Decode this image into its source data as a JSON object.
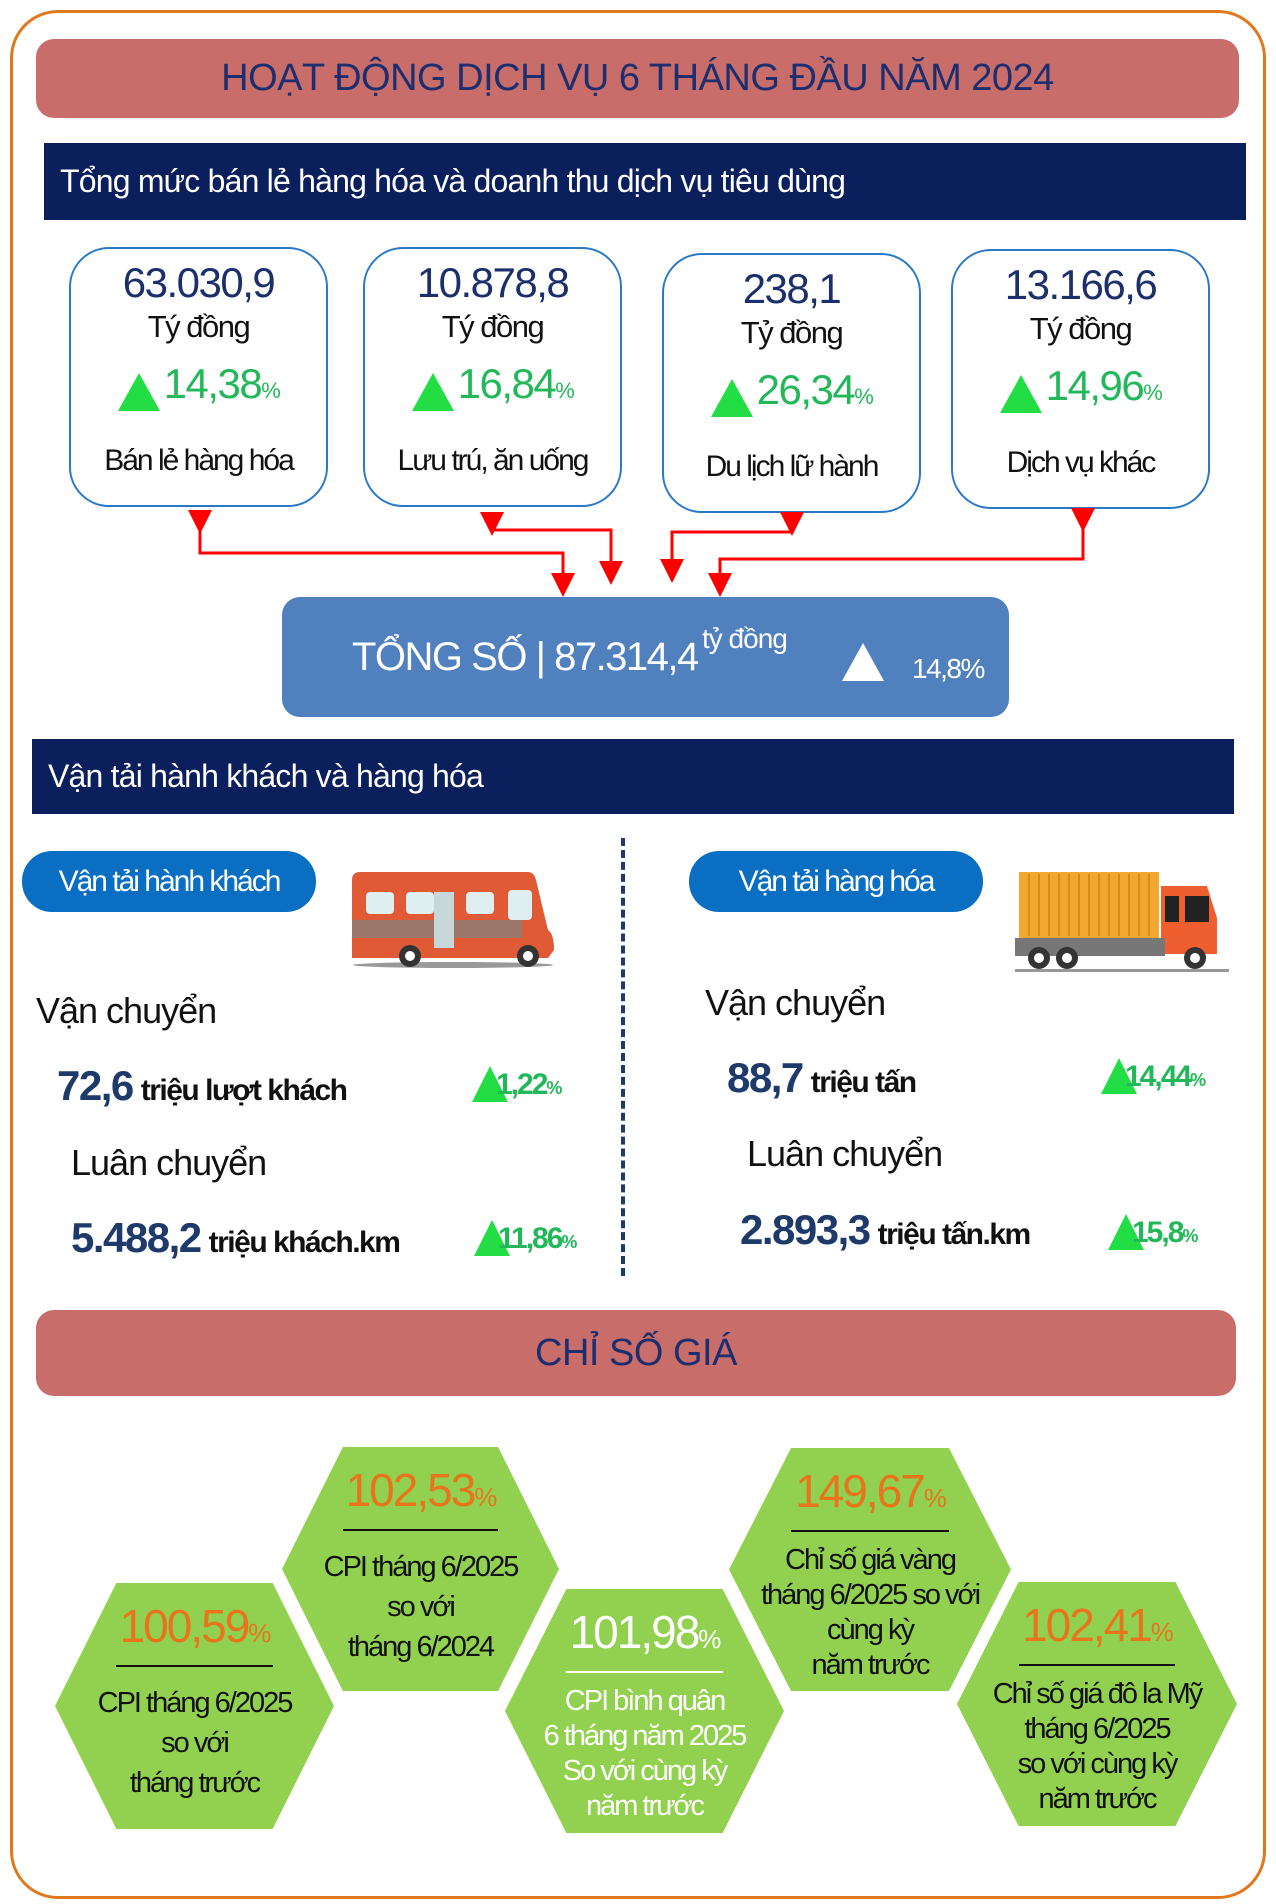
{
  "title": "HOẠT ĐỘNG DỊCH VỤ 6 THÁNG ĐẦU NĂM 2024",
  "retail_section": {
    "heading": "Tổng mức bán lẻ hàng hóa và doanh thu dịch vụ tiêu dùng",
    "cards": [
      {
        "value": "63.030,9",
        "unit": "Tý đồng",
        "change": "14,38",
        "pct": "%",
        "label": "Bán lẻ hàng hóa"
      },
      {
        "value": "10.878,8",
        "unit": "Tý đồng",
        "change": "16,84",
        "pct": "%",
        "label": "Lưu trú, ăn uống"
      },
      {
        "value": "238,1",
        "unit": "Tỷ đồng",
        "change": "26,34",
        "pct": "%",
        "label": "Du lịch lữ hành"
      },
      {
        "value": "13.166,6",
        "unit": "Tý đồng",
        "change": "14,96",
        "pct": "%",
        "label": "Dịch vụ khác"
      }
    ],
    "total": {
      "label": "TỔNG SỐ | 87.314,4",
      "unit": "tỷ đồng",
      "change": "14,8%"
    }
  },
  "transport_section": {
    "heading": "Vận tải hành khách và hàng hóa",
    "passenger": {
      "pill": "Vận tải hành khách",
      "carry_label": "Vận chuyển",
      "carry_value": "72,6",
      "carry_unit": "triệu lượt khách",
      "carry_change": "1,22",
      "pct": "%",
      "rotation_label": "Luân chuyển",
      "rotation_value": "5.488,2",
      "rotation_unit": "triệu khách.km",
      "rotation_change": "11,86"
    },
    "freight": {
      "pill": "Vận tải hàng hóa",
      "carry_label": "Vận chuyển",
      "carry_value": "88,7",
      "carry_unit": "triệu tấn",
      "carry_change": "14,44",
      "pct": "%",
      "rotation_label": "Luân chuyển",
      "rotation_value": "2.893,3",
      "rotation_unit": "triệu tấn.km",
      "rotation_change": "15,8"
    }
  },
  "price_section": {
    "heading": "CHỈ SỐ GIÁ",
    "items": [
      {
        "value": "100,59",
        "pct": "%",
        "desc": [
          "CPI tháng 6/2025",
          "so với",
          "tháng trước"
        ]
      },
      {
        "value": "102,53",
        "pct": "%",
        "desc": [
          "CPI tháng 6/2025",
          "so với",
          "tháng 6/2024"
        ]
      },
      {
        "value": "101,98",
        "pct": "%",
        "desc": [
          "CPI bình quân",
          "6 tháng năm 2025",
          "So với cùng kỳ",
          "năm trước"
        ]
      },
      {
        "value": "149,67",
        "pct": "%",
        "desc": [
          "Chỉ số giá vàng",
          "tháng 6/2025 so với",
          "cùng kỳ",
          "năm trước"
        ]
      },
      {
        "value": "102,41",
        "pct": "%",
        "desc": [
          "Chỉ số giá đô la Mỹ",
          "tháng 6/2025",
          "so với cùng kỳ",
          "năm trước"
        ]
      }
    ]
  },
  "colors": {
    "band": "#c96d6a",
    "navy": "#0a1f5c",
    "card_border": "#2a78c8",
    "total_bg": "#5080bd",
    "up_green": "#22dd44",
    "hex_green": "#92d050",
    "value_orange": "#e8741e",
    "arrow_red": "#ff0000",
    "frame": "#e0781e"
  }
}
